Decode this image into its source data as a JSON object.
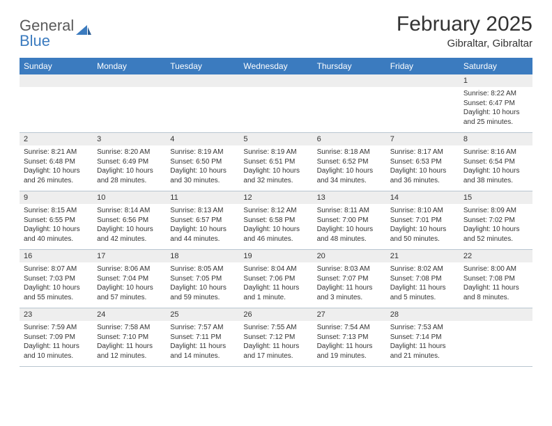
{
  "brand": {
    "part1": "General",
    "part2": "Blue",
    "color1": "#5a5a5a",
    "color2": "#3b7bbf"
  },
  "title": "February 2025",
  "location": "Gibraltar, Gibraltar",
  "colors": {
    "header_bg": "#3b7bbf",
    "header_fg": "#ffffff",
    "daynum_bg": "#eeeeee",
    "border": "#b8c5d0",
    "text": "#333333",
    "page_bg": "#ffffff"
  },
  "fonts": {
    "title_size": 30,
    "location_size": 15,
    "dayheader_size": 12,
    "daynum_size": 11,
    "cell_size": 10
  },
  "day_names": [
    "Sunday",
    "Monday",
    "Tuesday",
    "Wednesday",
    "Thursday",
    "Friday",
    "Saturday"
  ],
  "weeks": [
    {
      "nums": [
        "",
        "",
        "",
        "",
        "",
        "",
        "1"
      ],
      "info": [
        "",
        "",
        "",
        "",
        "",
        "",
        "Sunrise: 8:22 AM\nSunset: 6:47 PM\nDaylight: 10 hours and 25 minutes."
      ]
    },
    {
      "nums": [
        "2",
        "3",
        "4",
        "5",
        "6",
        "7",
        "8"
      ],
      "info": [
        "Sunrise: 8:21 AM\nSunset: 6:48 PM\nDaylight: 10 hours and 26 minutes.",
        "Sunrise: 8:20 AM\nSunset: 6:49 PM\nDaylight: 10 hours and 28 minutes.",
        "Sunrise: 8:19 AM\nSunset: 6:50 PM\nDaylight: 10 hours and 30 minutes.",
        "Sunrise: 8:19 AM\nSunset: 6:51 PM\nDaylight: 10 hours and 32 minutes.",
        "Sunrise: 8:18 AM\nSunset: 6:52 PM\nDaylight: 10 hours and 34 minutes.",
        "Sunrise: 8:17 AM\nSunset: 6:53 PM\nDaylight: 10 hours and 36 minutes.",
        "Sunrise: 8:16 AM\nSunset: 6:54 PM\nDaylight: 10 hours and 38 minutes."
      ]
    },
    {
      "nums": [
        "9",
        "10",
        "11",
        "12",
        "13",
        "14",
        "15"
      ],
      "info": [
        "Sunrise: 8:15 AM\nSunset: 6:55 PM\nDaylight: 10 hours and 40 minutes.",
        "Sunrise: 8:14 AM\nSunset: 6:56 PM\nDaylight: 10 hours and 42 minutes.",
        "Sunrise: 8:13 AM\nSunset: 6:57 PM\nDaylight: 10 hours and 44 minutes.",
        "Sunrise: 8:12 AM\nSunset: 6:58 PM\nDaylight: 10 hours and 46 minutes.",
        "Sunrise: 8:11 AM\nSunset: 7:00 PM\nDaylight: 10 hours and 48 minutes.",
        "Sunrise: 8:10 AM\nSunset: 7:01 PM\nDaylight: 10 hours and 50 minutes.",
        "Sunrise: 8:09 AM\nSunset: 7:02 PM\nDaylight: 10 hours and 52 minutes."
      ]
    },
    {
      "nums": [
        "16",
        "17",
        "18",
        "19",
        "20",
        "21",
        "22"
      ],
      "info": [
        "Sunrise: 8:07 AM\nSunset: 7:03 PM\nDaylight: 10 hours and 55 minutes.",
        "Sunrise: 8:06 AM\nSunset: 7:04 PM\nDaylight: 10 hours and 57 minutes.",
        "Sunrise: 8:05 AM\nSunset: 7:05 PM\nDaylight: 10 hours and 59 minutes.",
        "Sunrise: 8:04 AM\nSunset: 7:06 PM\nDaylight: 11 hours and 1 minute.",
        "Sunrise: 8:03 AM\nSunset: 7:07 PM\nDaylight: 11 hours and 3 minutes.",
        "Sunrise: 8:02 AM\nSunset: 7:08 PM\nDaylight: 11 hours and 5 minutes.",
        "Sunrise: 8:00 AM\nSunset: 7:08 PM\nDaylight: 11 hours and 8 minutes."
      ]
    },
    {
      "nums": [
        "23",
        "24",
        "25",
        "26",
        "27",
        "28",
        ""
      ],
      "info": [
        "Sunrise: 7:59 AM\nSunset: 7:09 PM\nDaylight: 11 hours and 10 minutes.",
        "Sunrise: 7:58 AM\nSunset: 7:10 PM\nDaylight: 11 hours and 12 minutes.",
        "Sunrise: 7:57 AM\nSunset: 7:11 PM\nDaylight: 11 hours and 14 minutes.",
        "Sunrise: 7:55 AM\nSunset: 7:12 PM\nDaylight: 11 hours and 17 minutes.",
        "Sunrise: 7:54 AM\nSunset: 7:13 PM\nDaylight: 11 hours and 19 minutes.",
        "Sunrise: 7:53 AM\nSunset: 7:14 PM\nDaylight: 11 hours and 21 minutes.",
        ""
      ]
    }
  ]
}
